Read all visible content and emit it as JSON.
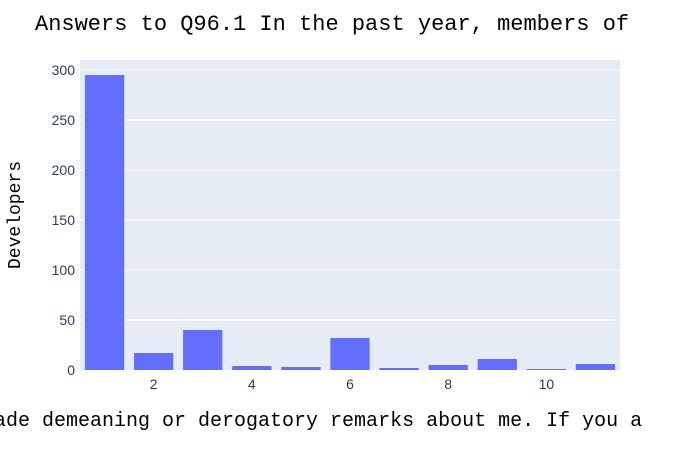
{
  "chart_data": {
    "type": "bar",
    "title": "Answers to Q96.1 In the past year, members of",
    "xlabel": "ade demeaning or derogatory remarks about me. If you a",
    "ylabel": "Developers",
    "x": [
      1,
      2,
      3,
      4,
      5,
      6,
      7,
      8,
      9,
      10,
      11
    ],
    "values": [
      295,
      17,
      40,
      4,
      3,
      32,
      2,
      5,
      11,
      1,
      6
    ],
    "xticks": [
      2,
      4,
      6,
      8,
      10
    ],
    "xtick_labels": [
      "2",
      "4",
      "6",
      "8",
      "10"
    ],
    "yticks": [
      0,
      50,
      100,
      150,
      200,
      250,
      300
    ],
    "ytick_labels": [
      "0",
      "50",
      "100",
      "150",
      "200",
      "250",
      "300"
    ],
    "xlim": [
      0.5,
      11.5
    ],
    "ylim": [
      0,
      310
    ],
    "grid": true,
    "colors": {
      "bar": "#636efa",
      "plot_bg": "#e5ecf6",
      "grid": "#ffffff",
      "text": "#2a3f5f"
    }
  }
}
